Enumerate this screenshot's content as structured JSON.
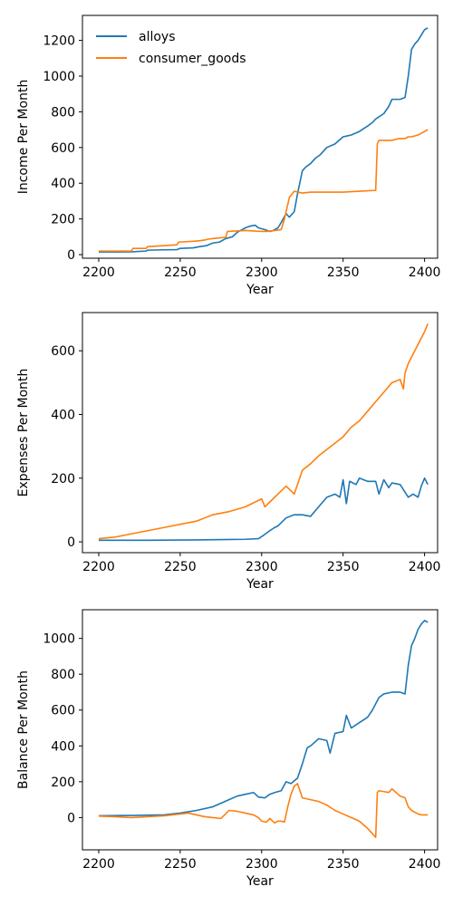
{
  "colors": {
    "alloys": "#1f77b4",
    "consumer_goods": "#ff7f0e"
  },
  "chart_data": [
    {
      "type": "line",
      "xlabel": "Year",
      "ylabel": "Income Per Month",
      "xlim": [
        2190,
        2408
      ],
      "ylim": [
        -20,
        1340
      ],
      "xticks": [
        2200,
        2250,
        2300,
        2350,
        2400
      ],
      "yticks": [
        0,
        200,
        400,
        600,
        800,
        1000,
        1200
      ],
      "legend": {
        "placement": "top-left",
        "entries": [
          "alloys",
          "consumer_goods"
        ]
      },
      "series": [
        {
          "name": "alloys",
          "color": "#1f77b4",
          "x": [
            2200,
            2210,
            2220,
            2229,
            2230,
            2240,
            2248,
            2250,
            2258,
            2262,
            2266,
            2270,
            2274,
            2278,
            2282,
            2285,
            2288,
            2290,
            2293,
            2296,
            2298,
            2302,
            2305,
            2307,
            2310,
            2312,
            2315,
            2317,
            2320,
            2322,
            2325,
            2327,
            2330,
            2333,
            2336,
            2340,
            2345,
            2350,
            2355,
            2360,
            2365,
            2368,
            2370,
            2375,
            2378,
            2380,
            2385,
            2388,
            2390,
            2392,
            2394,
            2396,
            2398,
            2400,
            2402
          ],
          "y": [
            15,
            15,
            16,
            20,
            25,
            27,
            28,
            35,
            38,
            45,
            50,
            65,
            70,
            90,
            100,
            125,
            140,
            150,
            160,
            165,
            150,
            140,
            130,
            135,
            150,
            180,
            230,
            210,
            240,
            340,
            470,
            490,
            510,
            540,
            560,
            600,
            620,
            660,
            670,
            690,
            720,
            740,
            760,
            790,
            830,
            870,
            870,
            880,
            1000,
            1150,
            1180,
            1200,
            1230,
            1260,
            1270
          ]
        },
        {
          "name": "consumer_goods",
          "color": "#ff7f0e",
          "x": [
            2200,
            2220,
            2221,
            2229,
            2230,
            2240,
            2248,
            2249,
            2258,
            2262,
            2265,
            2268,
            2272,
            2276,
            2278,
            2279,
            2290,
            2300,
            2303,
            2308,
            2312,
            2314,
            2317,
            2320,
            2325,
            2330,
            2340,
            2350,
            2360,
            2370,
            2371,
            2372,
            2374,
            2376,
            2380,
            2384,
            2388,
            2390,
            2392,
            2394,
            2396,
            2398,
            2400,
            2402
          ],
          "y": [
            20,
            20,
            35,
            35,
            45,
            50,
            55,
            70,
            75,
            78,
            82,
            88,
            92,
            95,
            98,
            130,
            135,
            130,
            130,
            135,
            140,
            200,
            320,
            355,
            345,
            350,
            350,
            350,
            355,
            360,
            620,
            640,
            640,
            640,
            640,
            650,
            650,
            660,
            660,
            665,
            670,
            680,
            690,
            700
          ]
        }
      ]
    },
    {
      "type": "line",
      "xlabel": "Year",
      "ylabel": "Expenses Per Month",
      "xlim": [
        2190,
        2408
      ],
      "ylim": [
        -34,
        720
      ],
      "xticks": [
        2200,
        2250,
        2300,
        2350,
        2400
      ],
      "yticks": [
        0,
        200,
        400,
        600
      ],
      "series": [
        {
          "name": "alloys",
          "color": "#1f77b4",
          "x": [
            2200,
            2230,
            2260,
            2290,
            2298,
            2301,
            2305,
            2308,
            2310,
            2315,
            2320,
            2325,
            2330,
            2335,
            2340,
            2345,
            2348,
            2350,
            2352,
            2354,
            2358,
            2360,
            2365,
            2370,
            2372,
            2375,
            2378,
            2380,
            2385,
            2390,
            2393,
            2396,
            2398,
            2400,
            2402
          ],
          "y": [
            5,
            5,
            6,
            8,
            10,
            20,
            35,
            45,
            50,
            75,
            85,
            85,
            80,
            110,
            140,
            150,
            140,
            195,
            120,
            190,
            180,
            200,
            190,
            190,
            150,
            195,
            170,
            185,
            180,
            140,
            150,
            140,
            175,
            200,
            180
          ]
        },
        {
          "name": "consumer_goods",
          "color": "#ff7f0e",
          "x": [
            2200,
            2210,
            2220,
            2230,
            2240,
            2250,
            2260,
            2265,
            2270,
            2280,
            2290,
            2298,
            2300,
            2302,
            2305,
            2310,
            2315,
            2318,
            2320,
            2322,
            2325,
            2330,
            2335,
            2340,
            2345,
            2350,
            2355,
            2360,
            2365,
            2370,
            2375,
            2380,
            2385,
            2387,
            2388,
            2390,
            2395,
            2400,
            2402
          ],
          "y": [
            10,
            15,
            25,
            35,
            45,
            55,
            65,
            75,
            85,
            95,
            110,
            130,
            135,
            110,
            125,
            150,
            175,
            160,
            150,
            180,
            225,
            245,
            270,
            290,
            310,
            330,
            360,
            380,
            410,
            440,
            470,
            500,
            510,
            480,
            530,
            560,
            610,
            660,
            685
          ]
        }
      ]
    },
    {
      "type": "line",
      "xlabel": "Year",
      "ylabel": "Balance Per Month",
      "xlim": [
        2190,
        2408
      ],
      "ylim": [
        -180,
        1160
      ],
      "xticks": [
        2200,
        2250,
        2300,
        2350,
        2400
      ],
      "yticks": [
        0,
        200,
        400,
        600,
        800,
        1000
      ],
      "series": [
        {
          "name": "alloys",
          "color": "#1f77b4",
          "x": [
            2200,
            2220,
            2240,
            2250,
            2260,
            2270,
            2280,
            2285,
            2290,
            2295,
            2298,
            2302,
            2305,
            2308,
            2312,
            2315,
            2318,
            2322,
            2325,
            2328,
            2330,
            2335,
            2340,
            2342,
            2345,
            2350,
            2352,
            2355,
            2360,
            2365,
            2368,
            2372,
            2375,
            2380,
            2385,
            2388,
            2390,
            2392,
            2394,
            2396,
            2398,
            2400,
            2402
          ],
          "y": [
            10,
            12,
            15,
            25,
            40,
            60,
            100,
            120,
            130,
            140,
            115,
            110,
            130,
            140,
            150,
            200,
            190,
            220,
            300,
            390,
            400,
            440,
            430,
            360,
            470,
            480,
            570,
            500,
            530,
            560,
            600,
            670,
            690,
            700,
            700,
            690,
            850,
            960,
            1000,
            1050,
            1080,
            1100,
            1090
          ]
        },
        {
          "name": "consumer_goods",
          "color": "#ff7f0e",
          "x": [
            2200,
            2210,
            2220,
            2230,
            2240,
            2250,
            2255,
            2260,
            2265,
            2270,
            2275,
            2280,
            2285,
            2290,
            2295,
            2298,
            2300,
            2303,
            2305,
            2308,
            2310,
            2312,
            2314,
            2316,
            2318,
            2320,
            2322,
            2325,
            2330,
            2335,
            2340,
            2345,
            2350,
            2355,
            2360,
            2365,
            2368,
            2370,
            2371,
            2372,
            2375,
            2378,
            2380,
            2385,
            2388,
            2390,
            2392,
            2394,
            2396,
            2398,
            2400,
            2402
          ],
          "y": [
            8,
            5,
            0,
            5,
            10,
            20,
            25,
            15,
            5,
            0,
            -5,
            40,
            35,
            25,
            15,
            0,
            -20,
            -25,
            -5,
            -30,
            -20,
            -20,
            -25,
            60,
            130,
            175,
            190,
            110,
            100,
            90,
            70,
            40,
            20,
            0,
            -20,
            -60,
            -90,
            -110,
            140,
            150,
            145,
            140,
            160,
            120,
            110,
            60,
            40,
            30,
            20,
            15,
            15,
            15
          ]
        }
      ]
    }
  ]
}
